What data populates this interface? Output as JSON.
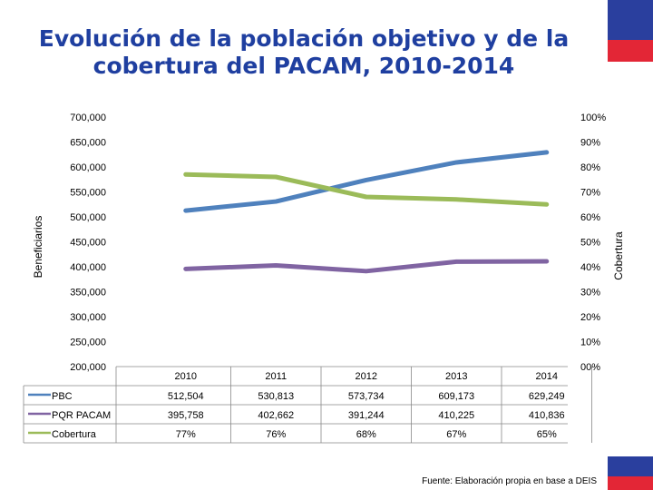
{
  "title": "Evolución de la población objetivo y de la cobertura del PACAM, 2010-2014",
  "source_note": "Fuente: Elaboración propia en base a DEIS",
  "colors": {
    "title": "#1f3fa0",
    "pbc": "#4f81bd",
    "pqr": "#8064a2",
    "cobertura": "#9bbb59",
    "flag_blue": "#2a3f9e",
    "flag_red": "#e32636"
  },
  "chart_data": {
    "type": "line",
    "title": "Evolución de la población objetivo y de la cobertura del PACAM, 2010-2014",
    "categories": [
      "2010",
      "2011",
      "2012",
      "2013",
      "2014"
    ],
    "ylabel": "Beneficiarios",
    "y2label": "Cobertura",
    "ylim": [
      200000,
      700000
    ],
    "y2lim": [
      0,
      100
    ],
    "y_ticks": [
      "700,000",
      "650,000",
      "600,000",
      "550,000",
      "500,000",
      "450,000",
      "400,000",
      "350,000",
      "300,000",
      "250,000",
      "200,000"
    ],
    "y2_ticks": [
      "100%",
      "90%",
      "80%",
      "70%",
      "60%",
      "50%",
      "40%",
      "30%",
      "20%",
      "10%",
      "00%"
    ],
    "series": [
      {
        "name": "PBC",
        "axis": "left",
        "values": [
          512504,
          530813,
          573734,
          609173,
          629249
        ],
        "labels": [
          "512,504",
          "530,813",
          "573,734",
          "609,173",
          "629,249"
        ]
      },
      {
        "name": "PQR PACAM",
        "axis": "left",
        "values": [
          395758,
          402662,
          391244,
          410225,
          410836
        ],
        "labels": [
          "395,758",
          "402,662",
          "391,244",
          "410,225",
          "410,836"
        ]
      },
      {
        "name": "Cobertura",
        "axis": "right",
        "values": [
          77,
          76,
          68,
          67,
          65
        ],
        "labels": [
          "77%",
          "76%",
          "68%",
          "67%",
          "65%"
        ]
      }
    ]
  }
}
